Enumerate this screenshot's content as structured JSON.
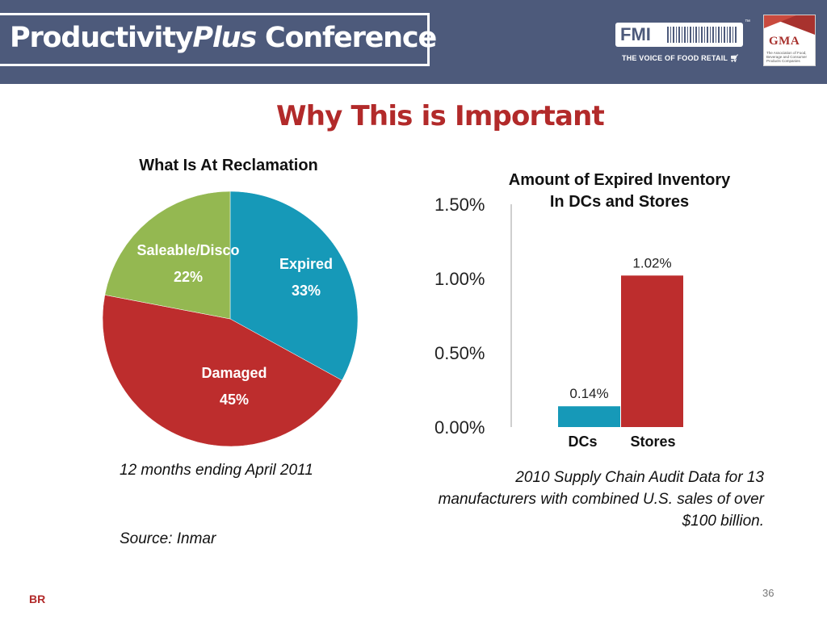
{
  "header": {
    "brand_part1": "Productivity",
    "brand_part2": "Plus",
    "brand_part3": " Conference",
    "fmi_logo_text": "FMI",
    "fmi_trademark": "™",
    "fmi_tagline": "THE VOICE OF FOOD RETAIL",
    "gma_logo_text": "GMA",
    "gma_tagline": "The Association of Food, Beverage and Consumer Products Companies",
    "bg_color": "#4d5a7b"
  },
  "slide": {
    "title": "Why This is Important",
    "title_color": "#b22a2a",
    "note_period": "12 months ending April 2011",
    "note_source": "Source:  Inmar",
    "note_audit": "2010 Supply Chain Audit Data for 13 manufacturers with combined U.S. sales of over $100 billion.",
    "page_number": "36",
    "presenter_initials": "BR"
  },
  "chart_data": [
    {
      "type": "pie",
      "title": "What Is At Reclamation",
      "slices": [
        {
          "label": "Expired",
          "value": 33,
          "display": "33%",
          "color": "#1699b8"
        },
        {
          "label": "Damaged",
          "value": 45,
          "display": "45%",
          "color": "#bd2d2d"
        },
        {
          "label": "Saleable/Disco",
          "value": 22,
          "display": "22%",
          "color": "#94b851"
        }
      ]
    },
    {
      "type": "bar",
      "title_line1": "Amount of Expired Inventory",
      "title_line2": "In DCs and Stores",
      "categories": [
        "DCs",
        "Stores"
      ],
      "values": [
        0.14,
        1.02
      ],
      "value_labels": [
        "0.14%",
        "1.02%"
      ],
      "colors": [
        "#1699b8",
        "#bd2d2d"
      ],
      "ylim": [
        0,
        1.5
      ],
      "yticks": [
        "0.00%",
        "0.50%",
        "1.00%",
        "1.50%"
      ],
      "ytick_values": [
        0,
        0.5,
        1.0,
        1.5
      ],
      "grid": false
    }
  ]
}
